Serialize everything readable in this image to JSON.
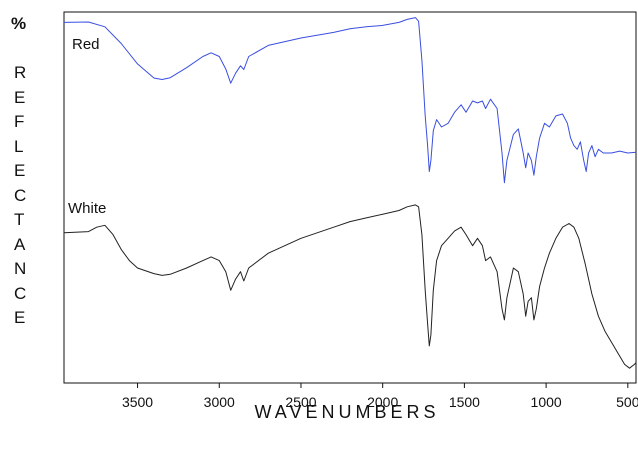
{
  "chart_data": {
    "type": "line",
    "xlabel": "WAVENUMBERS",
    "ylabel": "REFLECTANCE",
    "ylabel_prefix": "%",
    "x_reversed": true,
    "xlim": [
      3950,
      450
    ],
    "ylim": [
      0,
      1
    ],
    "xticks": [
      3500,
      3000,
      2500,
      2000,
      1500,
      1000,
      500
    ],
    "grid": false,
    "legend": "none",
    "series": [
      {
        "name": "Red",
        "color": "#3a4ee0",
        "points": [
          [
            3950,
            0.972
          ],
          [
            3800,
            0.973
          ],
          [
            3700,
            0.96
          ],
          [
            3600,
            0.915
          ],
          [
            3500,
            0.86
          ],
          [
            3400,
            0.822
          ],
          [
            3350,
            0.818
          ],
          [
            3300,
            0.823
          ],
          [
            3200,
            0.85
          ],
          [
            3100,
            0.88
          ],
          [
            3050,
            0.89
          ],
          [
            3000,
            0.88
          ],
          [
            2960,
            0.846
          ],
          [
            2930,
            0.808
          ],
          [
            2900,
            0.835
          ],
          [
            2870,
            0.855
          ],
          [
            2850,
            0.845
          ],
          [
            2820,
            0.88
          ],
          [
            2700,
            0.91
          ],
          [
            2500,
            0.93
          ],
          [
            2300,
            0.945
          ],
          [
            2200,
            0.955
          ],
          [
            2100,
            0.96
          ],
          [
            2000,
            0.964
          ],
          [
            1900,
            0.972
          ],
          [
            1850,
            0.98
          ],
          [
            1800,
            0.985
          ],
          [
            1780,
            0.975
          ],
          [
            1760,
            0.87
          ],
          [
            1740,
            0.72
          ],
          [
            1725,
            0.64
          ],
          [
            1715,
            0.57
          ],
          [
            1705,
            0.6
          ],
          [
            1690,
            0.68
          ],
          [
            1670,
            0.71
          ],
          [
            1640,
            0.69
          ],
          [
            1600,
            0.7
          ],
          [
            1560,
            0.73
          ],
          [
            1520,
            0.75
          ],
          [
            1490,
            0.73
          ],
          [
            1450,
            0.76
          ],
          [
            1420,
            0.755
          ],
          [
            1390,
            0.76
          ],
          [
            1370,
            0.74
          ],
          [
            1340,
            0.765
          ],
          [
            1300,
            0.74
          ],
          [
            1270,
            0.62
          ],
          [
            1255,
            0.54
          ],
          [
            1240,
            0.6
          ],
          [
            1200,
            0.67
          ],
          [
            1170,
            0.685
          ],
          [
            1140,
            0.62
          ],
          [
            1125,
            0.58
          ],
          [
            1110,
            0.62
          ],
          [
            1090,
            0.6
          ],
          [
            1075,
            0.56
          ],
          [
            1060,
            0.61
          ],
          [
            1040,
            0.66
          ],
          [
            1010,
            0.7
          ],
          [
            980,
            0.69
          ],
          [
            940,
            0.72
          ],
          [
            900,
            0.725
          ],
          [
            870,
            0.7
          ],
          [
            850,
            0.66
          ],
          [
            830,
            0.64
          ],
          [
            810,
            0.63
          ],
          [
            790,
            0.65
          ],
          [
            770,
            0.6
          ],
          [
            755,
            0.57
          ],
          [
            740,
            0.62
          ],
          [
            720,
            0.64
          ],
          [
            700,
            0.61
          ],
          [
            680,
            0.63
          ],
          [
            650,
            0.62
          ],
          [
            600,
            0.62
          ],
          [
            550,
            0.625
          ],
          [
            500,
            0.62
          ],
          [
            450,
            0.622
          ]
        ]
      },
      {
        "name": "White",
        "color": "#222222",
        "points": [
          [
            3950,
            0.405
          ],
          [
            3800,
            0.408
          ],
          [
            3750,
            0.42
          ],
          [
            3700,
            0.425
          ],
          [
            3650,
            0.4
          ],
          [
            3600,
            0.36
          ],
          [
            3550,
            0.33
          ],
          [
            3500,
            0.31
          ],
          [
            3400,
            0.295
          ],
          [
            3350,
            0.29
          ],
          [
            3300,
            0.293
          ],
          [
            3200,
            0.31
          ],
          [
            3100,
            0.33
          ],
          [
            3050,
            0.34
          ],
          [
            3000,
            0.33
          ],
          [
            2960,
            0.3
          ],
          [
            2930,
            0.25
          ],
          [
            2900,
            0.28
          ],
          [
            2870,
            0.3
          ],
          [
            2850,
            0.275
          ],
          [
            2820,
            0.31
          ],
          [
            2700,
            0.35
          ],
          [
            2500,
            0.39
          ],
          [
            2300,
            0.42
          ],
          [
            2200,
            0.435
          ],
          [
            2100,
            0.445
          ],
          [
            2000,
            0.455
          ],
          [
            1900,
            0.465
          ],
          [
            1850,
            0.475
          ],
          [
            1800,
            0.48
          ],
          [
            1780,
            0.475
          ],
          [
            1760,
            0.4
          ],
          [
            1740,
            0.25
          ],
          [
            1725,
            0.16
          ],
          [
            1715,
            0.1
          ],
          [
            1705,
            0.13
          ],
          [
            1690,
            0.25
          ],
          [
            1670,
            0.33
          ],
          [
            1640,
            0.37
          ],
          [
            1600,
            0.39
          ],
          [
            1560,
            0.41
          ],
          [
            1520,
            0.42
          ],
          [
            1490,
            0.4
          ],
          [
            1450,
            0.37
          ],
          [
            1420,
            0.39
          ],
          [
            1390,
            0.37
          ],
          [
            1370,
            0.33
          ],
          [
            1340,
            0.34
          ],
          [
            1300,
            0.3
          ],
          [
            1270,
            0.2
          ],
          [
            1255,
            0.17
          ],
          [
            1240,
            0.23
          ],
          [
            1200,
            0.31
          ],
          [
            1170,
            0.3
          ],
          [
            1140,
            0.24
          ],
          [
            1125,
            0.18
          ],
          [
            1110,
            0.22
          ],
          [
            1090,
            0.23
          ],
          [
            1075,
            0.17
          ],
          [
            1060,
            0.2
          ],
          [
            1040,
            0.26
          ],
          [
            1010,
            0.31
          ],
          [
            980,
            0.35
          ],
          [
            940,
            0.39
          ],
          [
            900,
            0.42
          ],
          [
            860,
            0.43
          ],
          [
            830,
            0.42
          ],
          [
            800,
            0.39
          ],
          [
            760,
            0.32
          ],
          [
            720,
            0.24
          ],
          [
            680,
            0.18
          ],
          [
            640,
            0.14
          ],
          [
            600,
            0.11
          ],
          [
            560,
            0.08
          ],
          [
            520,
            0.05
          ],
          [
            490,
            0.04
          ],
          [
            460,
            0.05
          ],
          [
            450,
            0.055
          ]
        ]
      }
    ]
  }
}
